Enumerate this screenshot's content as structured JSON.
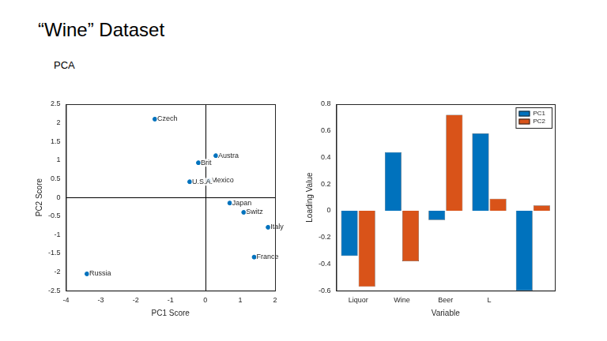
{
  "title": "“Wine” Dataset",
  "subtitle": "PCA",
  "chart_data": [
    {
      "type": "scatter",
      "xlabel": "PC1 Score",
      "ylabel": "PC2 Score",
      "color": "#0072bd",
      "marker": "circle",
      "grid": false,
      "point_labels": [
        "Czech",
        "Austra",
        "Brit",
        "Mexico",
        "U.S.A.",
        "Japan",
        "Switz",
        "Italy",
        "France",
        "Russia"
      ],
      "x": [
        -1.45,
        0.3,
        -0.2,
        0.1,
        -0.45,
        0.7,
        1.1,
        1.8,
        1.4,
        -3.4
      ],
      "values": [
        2.1,
        1.12,
        0.93,
        0.45,
        0.42,
        -0.15,
        -0.4,
        -0.8,
        -1.6,
        -2.05
      ],
      "xlim": [
        -4,
        2
      ],
      "xticks": [
        -4,
        -3,
        -2,
        -1,
        0,
        1,
        2
      ],
      "ylim": [
        -2.5,
        2.5
      ],
      "yticks": [
        -2.5,
        -2,
        -1.5,
        -1,
        -0.5,
        0,
        0.5,
        1,
        1.5,
        2,
        2.5
      ]
    },
    {
      "type": "bar",
      "xlabel": "Variable",
      "ylabel": "Loading Value",
      "grid": false,
      "legend": "upper right",
      "categories": [
        "Liquor",
        "Wine",
        "Beer",
        "L",
        null
      ],
      "series": [
        {
          "name": "PC1",
          "color": "#0072bd",
          "values": [
            -0.34,
            0.44,
            -0.07,
            0.58,
            -0.6
          ]
        },
        {
          "name": "PC2",
          "color": "#d95319",
          "values": [
            -0.57,
            -0.38,
            0.72,
            0.09,
            0.04
          ]
        }
      ],
      "ylim": [
        -0.6,
        0.8
      ],
      "yticks": [
        -0.6,
        -0.4,
        -0.2,
        0,
        0.2,
        0.4,
        0.6,
        0.8
      ]
    }
  ]
}
